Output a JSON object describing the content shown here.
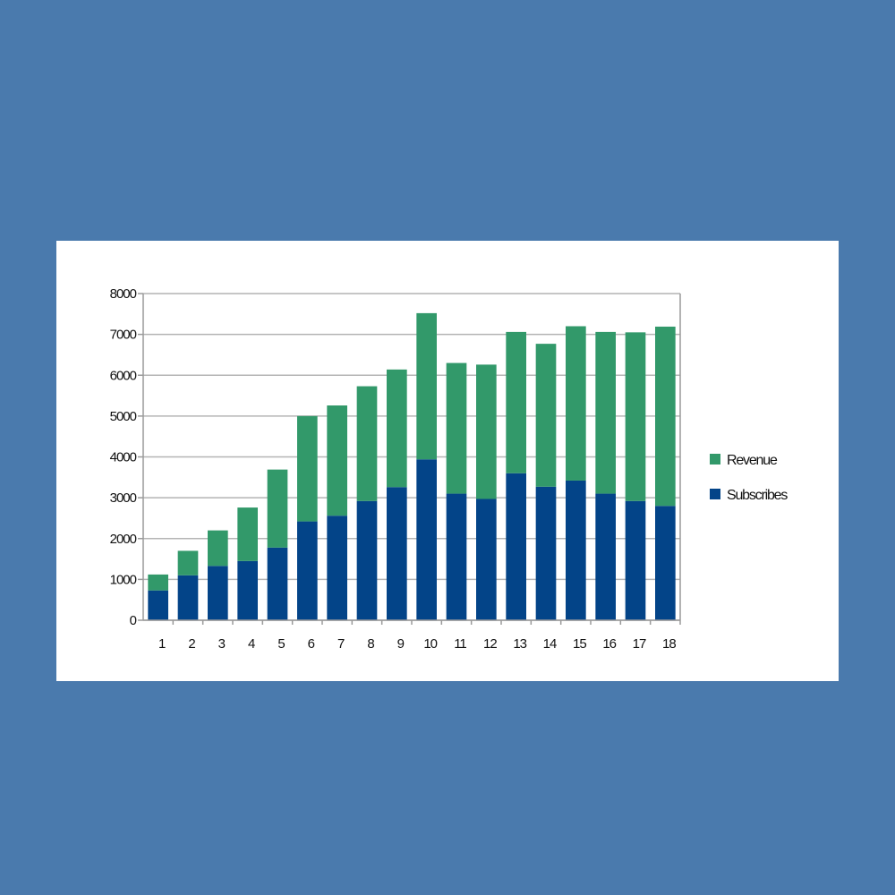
{
  "colors": {
    "background": "#4a7aad",
    "card": "#ffffff",
    "subscribes": "#034488",
    "revenue": "#32996a",
    "grid": "#b4b4b4",
    "axis": "#9a9a9a"
  },
  "chart_data": {
    "type": "bar",
    "stacked": true,
    "categories": [
      "1",
      "2",
      "3",
      "4",
      "5",
      "6",
      "7",
      "8",
      "9",
      "10",
      "11",
      "12",
      "13",
      "14",
      "15",
      "16",
      "17",
      "18"
    ],
    "series": [
      {
        "name": "Subscribes",
        "color": "#034488",
        "values": [
          730,
          1100,
          1330,
          1450,
          1780,
          2420,
          2560,
          2920,
          3260,
          3940,
          3100,
          2970,
          3600,
          3270,
          3420,
          3100,
          2920,
          2800
        ]
      },
      {
        "name": "Revenue",
        "color": "#32996a",
        "values": [
          390,
          600,
          870,
          1310,
          1910,
          2580,
          2700,
          2810,
          2880,
          3580,
          3200,
          3290,
          3460,
          3500,
          3780,
          3960,
          4130,
          4390
        ]
      }
    ],
    "ylim": [
      0,
      8000
    ],
    "yticks": [
      "0",
      "1000",
      "2000",
      "3000",
      "4000",
      "5000",
      "6000",
      "7000",
      "8000"
    ],
    "grid": true,
    "legend": "right",
    "title": "",
    "xlabel": "",
    "ylabel": ""
  }
}
